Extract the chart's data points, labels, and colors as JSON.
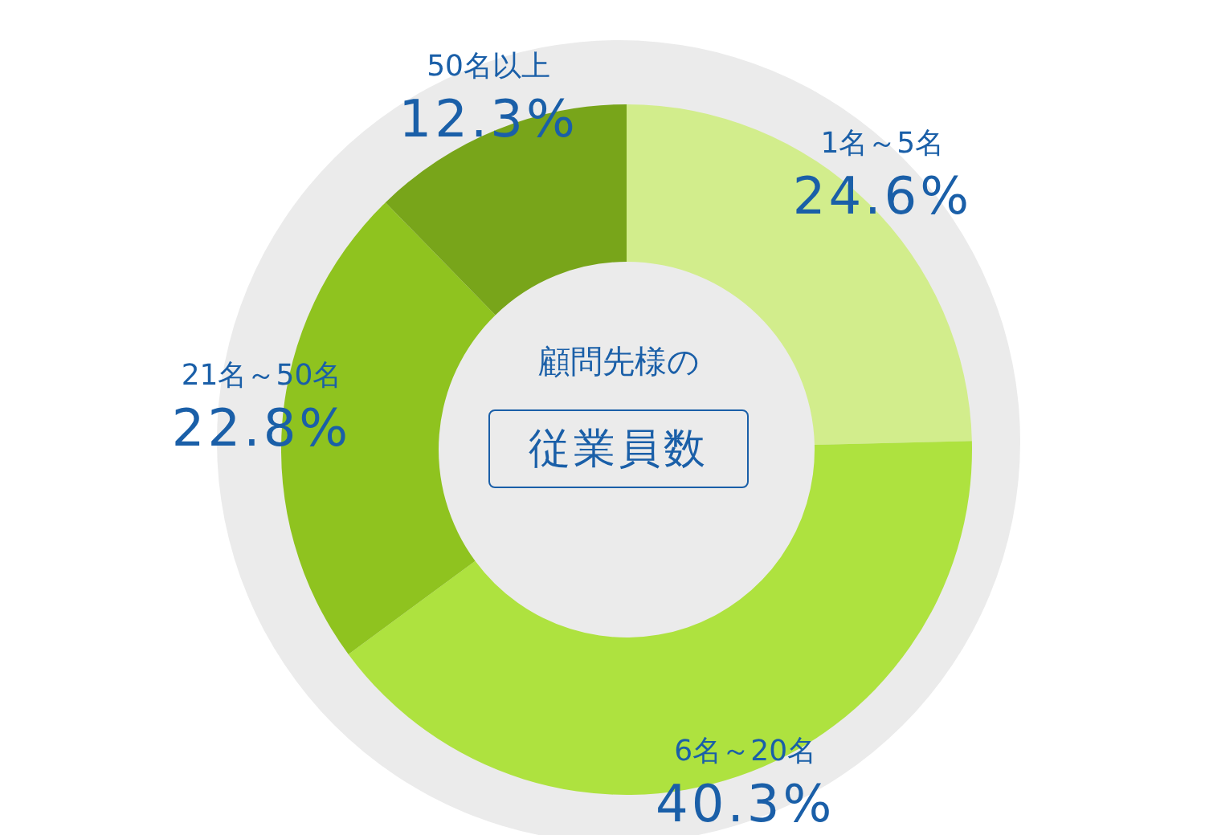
{
  "chart_data": {
    "type": "donut",
    "title": "顧問先様の",
    "subtitle": "従業員数",
    "categories": [
      "1名～5名",
      "6名～20名",
      "21名～50名",
      "50名以上"
    ],
    "values": [
      24.6,
      40.3,
      22.8,
      12.3
    ],
    "value_labels": [
      "24.6%",
      "40.3%",
      "22.8%",
      "12.3%"
    ],
    "colors": [
      "#d2ed8c",
      "#aee23f",
      "#8fc31f",
      "#78a51a"
    ]
  }
}
